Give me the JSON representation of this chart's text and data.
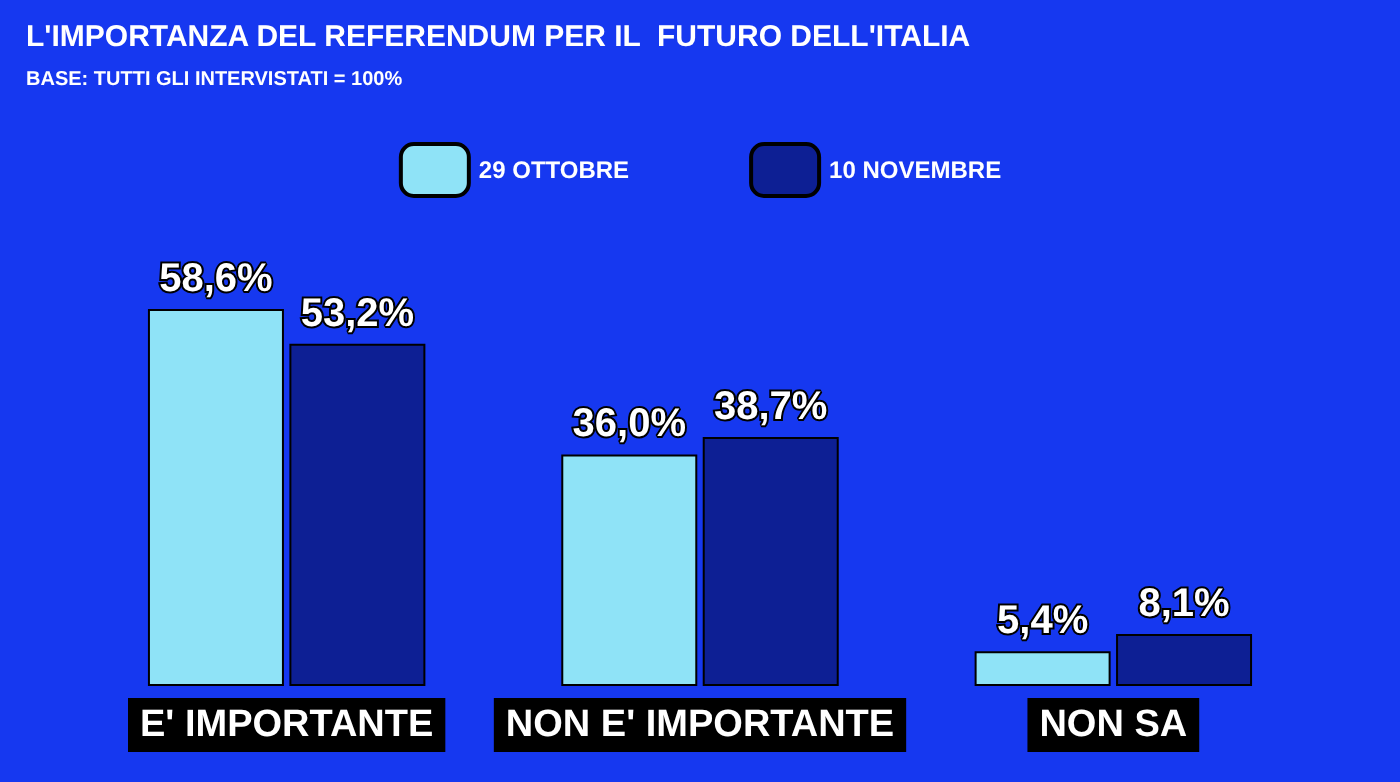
{
  "chart_data": {
    "type": "bar",
    "title": "L'IMPORTANZA DEL REFERENDUM PER IL  FUTURO DELL'ITALIA",
    "subtitle": "BASE: TUTTI GLI INTERVISTATI = 100%",
    "categories": [
      "E' IMPORTANTE",
      "NON E' IMPORTANTE",
      "NON SA"
    ],
    "series": [
      {
        "name": "29 OTTOBRE",
        "color": "#8fe3f7",
        "values": [
          58.6,
          36.0,
          5.4
        ],
        "value_labels": [
          "58,6%",
          "36,0%",
          "5,4%"
        ]
      },
      {
        "name": "10 NOVEMBRE",
        "color": "#0d1f94",
        "values": [
          53.2,
          38.7,
          8.1
        ],
        "value_labels": [
          "53,2%",
          "38,7%",
          "8,1%"
        ]
      }
    ],
    "legend": "top",
    "grid": false
  }
}
